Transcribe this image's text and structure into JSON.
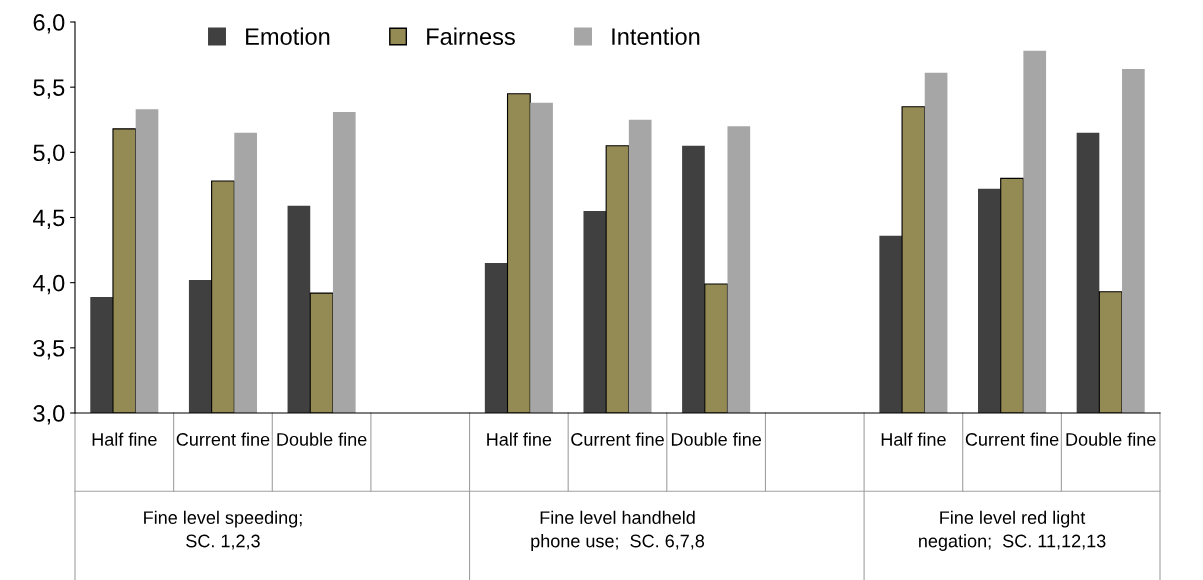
{
  "chart_data": {
    "type": "bar",
    "categories": [
      "Half fine",
      "Current fine",
      "Double fine",
      null,
      "Half fine",
      "Current fine",
      "Double fine",
      null,
      "Half fine",
      "Current fine",
      "Double fine"
    ],
    "series": [
      {
        "name": "Emotion",
        "color": "#404040",
        "values": [
          3.89,
          4.02,
          4.59,
          null,
          4.15,
          4.55,
          5.05,
          null,
          4.36,
          4.72,
          5.15
        ]
      },
      {
        "name": "Fairness",
        "color": "#948a54",
        "values": [
          5.18,
          4.78,
          3.92,
          null,
          5.45,
          5.05,
          3.99,
          null,
          5.35,
          4.8,
          3.93
        ]
      },
      {
        "name": "Intention",
        "color": "#a6a6a6",
        "values": [
          5.33,
          5.15,
          5.31,
          null,
          5.38,
          5.25,
          5.2,
          null,
          5.61,
          5.78,
          5.64
        ]
      }
    ],
    "ylim": [
      3,
      6
    ],
    "yticks": [
      {
        "value": 3,
        "label": "3,0"
      },
      {
        "value": 3.5,
        "label": "3,5"
      },
      {
        "value": 4,
        "label": "4,0"
      },
      {
        "value": 4.5,
        "label": "4,5"
      },
      {
        "value": 5,
        "label": "5,0"
      },
      {
        "value": 5.5,
        "label": "5,5"
      },
      {
        "value": 6,
        "label": "6,0"
      }
    ],
    "annotations": [
      "Fine level speeding;\nSC. 1,2,3",
      "Fine level handheld\nphone use;  SC. 6,7,8",
      "Fine level red light\nnegation;  SC. 11,12,13"
    ],
    "legend": "top",
    "grid": false
  }
}
